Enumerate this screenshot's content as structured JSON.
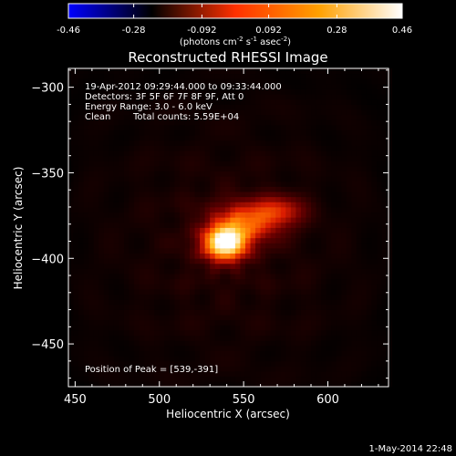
{
  "chart_data": {
    "type": "heatmap",
    "title": "Reconstructed RHESSI Image",
    "xlabel": "Heliocentric X (arcsec)",
    "ylabel": "Heliocentric Y (arcsec)",
    "xlim": [
      446,
      636
    ],
    "ylim": [
      -475,
      -289
    ],
    "x_ticks": [
      450,
      500,
      550,
      600
    ],
    "y_ticks": [
      -300,
      -350,
      -400,
      -450
    ],
    "colorbar": {
      "range": [
        -0.46,
        0.46
      ],
      "ticks": [
        "-0.46",
        "-0.28",
        "-0.092",
        "0.092",
        "0.28",
        "0.46"
      ],
      "unit_label": "(photons cm",
      "unit_exp1": "-2",
      "unit_mid": " s",
      "unit_exp2": "-1",
      "unit_tail": " asec",
      "unit_exp3": "-2",
      "unit_end": ")",
      "colormap": [
        "#0000ff",
        "#000000",
        "#ff3000",
        "#ffa000",
        "#ffffff"
      ]
    },
    "annotations": {
      "time": "19-Apr-2012 09:29:44.000 to 09:33:44.000",
      "detectors": "Detectors: 3F 5F 6F 7F 8F 9F, Att 0",
      "energy": "Energy Range: 3.0 - 6.0 keV",
      "method": "Clean",
      "counts": "Total counts: 5.59E+04",
      "peak": "Position of Peak = [539,-391]"
    },
    "peak": [
      539,
      -391
    ],
    "sources": [
      {
        "x": 539,
        "y": -391,
        "sx": 9,
        "sy": 7,
        "amp": 0.46
      },
      {
        "x": 552,
        "y": -378,
        "sx": 14,
        "sy": 8,
        "amp": 0.22
      },
      {
        "x": 572,
        "y": -372,
        "sx": 10,
        "sy": 6,
        "amp": 0.14
      }
    ]
  },
  "footer": {
    "timestamp": "1-May-2014 22:48"
  }
}
